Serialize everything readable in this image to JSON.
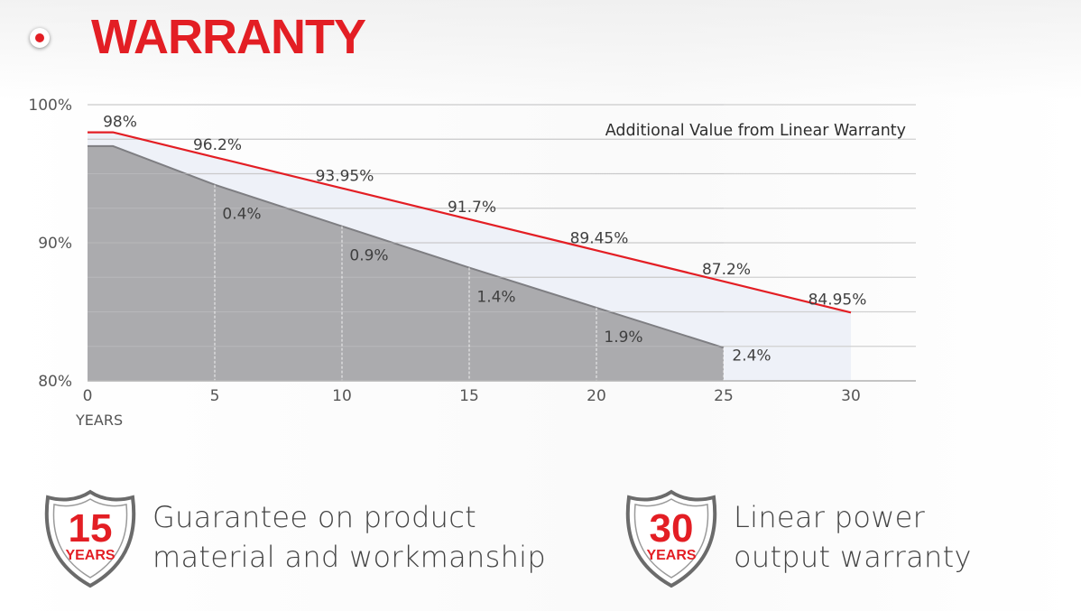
{
  "header": {
    "title": "WARRANTY"
  },
  "chart_data": {
    "type": "area",
    "xlabel": "YEARS",
    "ylabel": "",
    "xlim": [
      0,
      30
    ],
    "ylim": [
      80,
      100
    ],
    "x_ticks": [
      "0",
      "5",
      "10",
      "15",
      "20",
      "25",
      "30"
    ],
    "y_ticks": [
      "100%",
      "90%",
      "80%"
    ],
    "grid": true,
    "annotation": "Additional Value from Linear Warranty",
    "series": [
      {
        "x": [
          0,
          1,
          5,
          10,
          15,
          20,
          25,
          30
        ],
        "values": [
          98.0,
          98.0,
          96.2,
          93.95,
          91.7,
          89.45,
          87.2,
          84.95
        ],
        "labels": [
          "98%",
          "",
          "96.2%",
          "93.95%",
          "91.7%",
          "89.45%",
          "87.2%",
          "84.95%"
        ]
      },
      {
        "x": [
          0,
          1,
          5,
          10,
          15,
          20,
          25
        ],
        "values": [
          97.0,
          97.0,
          94.2,
          91.2,
          88.2,
          85.3,
          82.4
        ]
      }
    ],
    "gap_labels": [
      {
        "x": 5,
        "label": "0.4%"
      },
      {
        "x": 10,
        "label": "0.9%"
      },
      {
        "x": 15,
        "label": "1.4%"
      },
      {
        "x": 20,
        "label": "1.9%"
      },
      {
        "x": 25,
        "label": "2.4%"
      }
    ],
    "colors": {
      "linear_line": "#e31e24",
      "linear_fill": "#eef1f8",
      "step_fill": "#ababae",
      "step_line": "#7e7e82",
      "grid": "#d0d0d0"
    }
  },
  "features": [
    {
      "badge_number": "15",
      "badge_unit": "YEARS",
      "line1": "Guarantee on product",
      "line2": "material and workmanship"
    },
    {
      "badge_number": "30",
      "badge_unit": "YEARS",
      "line1": "Linear power",
      "line2": "output warranty"
    }
  ]
}
